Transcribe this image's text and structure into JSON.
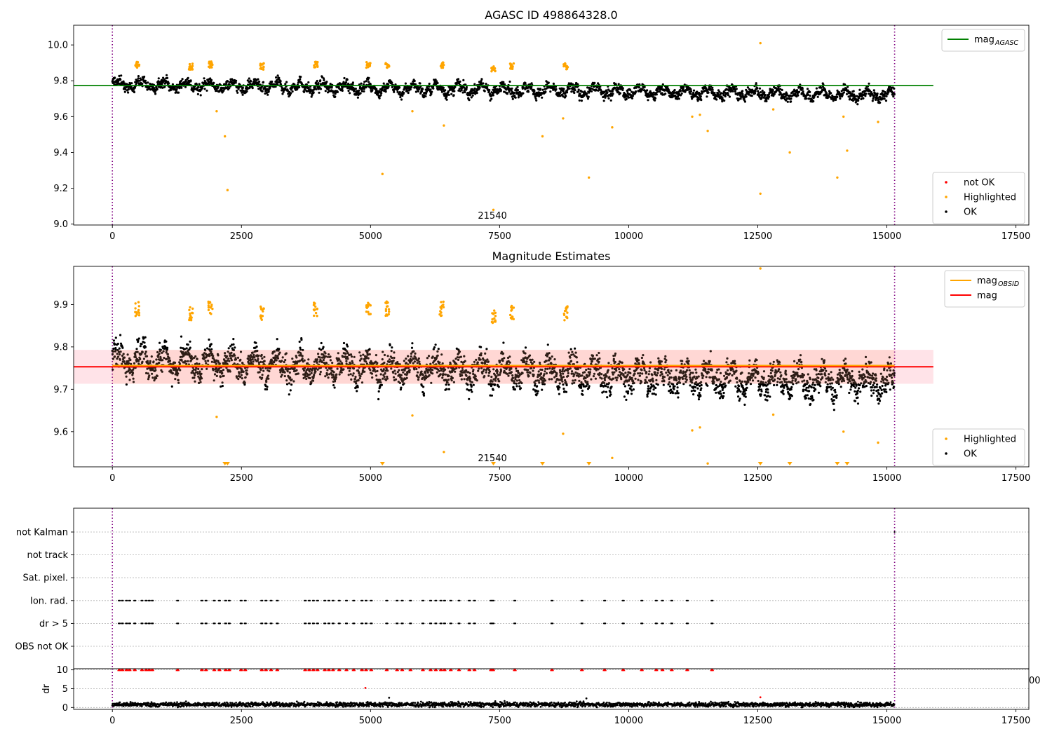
{
  "colors": {
    "ok": "#000000",
    "highlighted": "#ffa500",
    "not_ok": "#ff0000",
    "agasc_line": "#008000",
    "mag_line": "#ff0000",
    "mag_obsid_line": "#ffa500",
    "mag_band": "#ffc0cb",
    "obs_boundary": "#800080",
    "grid": "#b0b0b0"
  },
  "chart_data": [
    {
      "id": "agasc",
      "type": "scatter",
      "title": "AGASC ID 498864328.0",
      "xlim": [
        -750,
        17750
      ],
      "ylim": [
        8.995,
        10.11
      ],
      "x_ticks": [
        0,
        2500,
        5000,
        7500,
        10000,
        12500,
        15000,
        17500
      ],
      "x_tick_labels": [
        "0",
        "2500",
        "5000",
        "7500",
        "10000",
        "12500",
        "15000",
        "17500"
      ],
      "y_ticks": [
        9.0,
        9.2,
        9.4,
        9.6,
        9.8,
        10.0
      ],
      "y_tick_labels": [
        "9.0",
        "9.2",
        "9.4",
        "9.6",
        "9.8",
        "10.0"
      ],
      "hlines": [
        {
          "name": "mag_AGASC",
          "y": 9.773,
          "x_range": [
            -750,
            15900
          ],
          "color": "#008000"
        }
      ],
      "obs_boundaries": [
        0,
        15150
      ],
      "annotations": [
        {
          "text": "21540",
          "x": 7360,
          "y": 9.03
        }
      ],
      "ok_trend": {
        "x": [
          0,
          15150
        ],
        "y": [
          9.78,
          9.72
        ],
        "scatter": 0.04
      },
      "highlighted_clusters": [
        {
          "x": 480,
          "y": 9.89
        },
        {
          "x": 1520,
          "y": 9.88
        },
        {
          "x": 1900,
          "y": 9.89
        },
        {
          "x": 2900,
          "y": 9.88
        },
        {
          "x": 3940,
          "y": 9.89
        },
        {
          "x": 4960,
          "y": 9.89
        },
        {
          "x": 5320,
          "y": 9.89
        },
        {
          "x": 6380,
          "y": 9.89
        },
        {
          "x": 7380,
          "y": 9.87
        },
        {
          "x": 7740,
          "y": 9.88
        },
        {
          "x": 8780,
          "y": 9.88
        }
      ],
      "highlighted_outliers": [
        {
          "x": 2020,
          "y": 9.63
        },
        {
          "x": 2180,
          "y": 9.49
        },
        {
          "x": 2230,
          "y": 9.19
        },
        {
          "x": 5230,
          "y": 9.28
        },
        {
          "x": 5810,
          "y": 9.63
        },
        {
          "x": 6420,
          "y": 9.55
        },
        {
          "x": 8330,
          "y": 9.49
        },
        {
          "x": 8730,
          "y": 9.59
        },
        {
          "x": 9230,
          "y": 9.26
        },
        {
          "x": 9680,
          "y": 9.54
        },
        {
          "x": 11230,
          "y": 9.6
        },
        {
          "x": 11380,
          "y": 9.61
        },
        {
          "x": 11530,
          "y": 9.52
        },
        {
          "x": 12550,
          "y": 10.01
        },
        {
          "x": 12550,
          "y": 9.17
        },
        {
          "x": 12800,
          "y": 9.64
        },
        {
          "x": 13120,
          "y": 9.4
        },
        {
          "x": 14040,
          "y": 9.26
        },
        {
          "x": 14160,
          "y": 9.6
        },
        {
          "x": 14230,
          "y": 9.41
        },
        {
          "x": 14830,
          "y": 9.57
        },
        {
          "x": 7380,
          "y": 9.08
        }
      ],
      "legends": [
        {
          "position": "upper-right",
          "entries": [
            {
              "label": "mag",
              "subscript": "AGASC",
              "kind": "line",
              "color": "#008000"
            }
          ]
        },
        {
          "position": "lower-right",
          "entries": [
            {
              "label": "not OK",
              "kind": "point",
              "color": "#ff0000"
            },
            {
              "label": "Highlighted",
              "kind": "point",
              "color": "#ffa500"
            },
            {
              "label": "OK",
              "kind": "point",
              "color": "#000000"
            }
          ]
        }
      ]
    },
    {
      "id": "estimates",
      "type": "scatter",
      "title": "Magnitude Estimates",
      "xlim": [
        -750,
        17750
      ],
      "ylim": [
        9.517,
        9.99
      ],
      "x_ticks": [
        0,
        2500,
        5000,
        7500,
        10000,
        12500,
        15000,
        17500
      ],
      "x_tick_labels": [
        "0",
        "2500",
        "5000",
        "7500",
        "10000",
        "12500",
        "15000",
        "17500"
      ],
      "y_ticks": [
        9.6,
        9.7,
        9.8,
        9.9
      ],
      "y_tick_labels": [
        "9.6",
        "9.7",
        "9.8",
        "9.9"
      ],
      "hlines": [
        {
          "name": "mag",
          "y": 9.753,
          "x_range": [
            -750,
            15900
          ],
          "color": "#ff0000"
        },
        {
          "name": "mag_OBSID",
          "y": 9.756,
          "x_range": [
            0,
            15150
          ],
          "color": "#ffa500"
        }
      ],
      "band": {
        "y_low": 9.713,
        "y_high": 9.793,
        "x_range": [
          -750,
          15900
        ],
        "color": "#ffc0cb"
      },
      "obs_boundaries": [
        0,
        15150
      ],
      "annotations": [
        {
          "text": "21540",
          "x": 7360,
          "y": 9.53
        }
      ],
      "ok_trend": {
        "x": [
          0,
          15150
        ],
        "y": [
          9.77,
          9.715
        ],
        "scatter": 0.045
      },
      "highlighted_clusters": [
        {
          "x": 480,
          "y": 9.89
        },
        {
          "x": 1520,
          "y": 9.88
        },
        {
          "x": 1900,
          "y": 9.89
        },
        {
          "x": 2900,
          "y": 9.88
        },
        {
          "x": 3940,
          "y": 9.89
        },
        {
          "x": 4960,
          "y": 9.89
        },
        {
          "x": 5320,
          "y": 9.89
        },
        {
          "x": 6380,
          "y": 9.89
        },
        {
          "x": 7380,
          "y": 9.87
        },
        {
          "x": 7740,
          "y": 9.88
        },
        {
          "x": 8780,
          "y": 9.88
        }
      ],
      "highlighted_outliers": [
        {
          "x": 2020,
          "y": 9.635
        },
        {
          "x": 5810,
          "y": 9.638
        },
        {
          "x": 6420,
          "y": 9.552
        },
        {
          "x": 8730,
          "y": 9.595
        },
        {
          "x": 9680,
          "y": 9.538
        },
        {
          "x": 11230,
          "y": 9.603
        },
        {
          "x": 11380,
          "y": 9.61
        },
        {
          "x": 11530,
          "y": 9.525
        },
        {
          "x": 12800,
          "y": 9.64
        },
        {
          "x": 14160,
          "y": 9.6
        },
        {
          "x": 14830,
          "y": 9.574
        },
        {
          "x": 12550,
          "y": 9.985
        }
      ],
      "below_range_markers": [
        2180,
        2230,
        5230,
        7380,
        8330,
        9230,
        12550,
        13120,
        14040,
        14230
      ],
      "legends": [
        {
          "position": "upper-right",
          "entries": [
            {
              "label": "mag",
              "subscript": "OBSID",
              "kind": "line",
              "color": "#ffa500"
            },
            {
              "label": "mag",
              "kind": "line",
              "color": "#ff0000"
            }
          ]
        },
        {
          "position": "lower-right",
          "entries": [
            {
              "label": "Highlighted",
              "kind": "point",
              "color": "#ffa500"
            },
            {
              "label": "OK",
              "kind": "point",
              "color": "#000000"
            }
          ]
        }
      ]
    },
    {
      "id": "flags",
      "type": "scatter",
      "xlim": [
        -750,
        17750
      ],
      "categories": [
        "not Kalman",
        "not track",
        "Sat. pixel.",
        "Ion. rad.",
        "dr > 5",
        "OBS not OK"
      ],
      "flag_times": [
        120,
        180,
        260,
        320,
        420,
        560,
        640,
        700,
        760,
        1250,
        1720,
        1800,
        1960,
        2060,
        2180,
        2250,
        2480,
        2560,
        2880,
        2960,
        3060,
        3180,
        3720,
        3800,
        3880,
        3960,
        4100,
        4180,
        4260,
        4380,
        4520,
        4660,
        4820,
        4900,
        5000,
        5300,
        5500,
        5600,
        5760,
        6000,
        6150,
        6250,
        6350,
        6420,
        6540,
        6700,
        6900,
        7000,
        7320,
        7360,
        7780,
        8500,
        9080,
        9520,
        9880,
        10240,
        10520,
        10640,
        10820,
        11120,
        11600
      ],
      "flag_rows": [
        "Ion. rad.",
        "dr > 5"
      ],
      "not_kalman_times": [
        15150
      ],
      "obs_boundaries": [
        0,
        15150
      ],
      "truncated_label": "00"
    },
    {
      "id": "dr",
      "type": "scatter",
      "ylabel": "dr",
      "xlim": [
        -750,
        17750
      ],
      "ylim": [
        -0.5,
        10.3
      ],
      "x_ticks": [
        0,
        2500,
        5000,
        7500,
        10000,
        12500,
        15000,
        17500
      ],
      "x_tick_labels": [
        "0",
        "2500",
        "5000",
        "7500",
        "10000",
        "12500",
        "15000",
        "17500"
      ],
      "y_ticks": [
        0,
        5,
        10
      ],
      "y_tick_labels": [
        "0",
        "5",
        "10"
      ],
      "ok_level": {
        "y": 0.8,
        "scatter": 0.5,
        "x_range": [
          0,
          15150
        ]
      },
      "not_ok_at_y": 10,
      "outliers": [
        {
          "x": 4900,
          "y": 5.2,
          "color": "#ff0000"
        },
        {
          "x": 12550,
          "y": 2.7,
          "color": "#ff0000"
        },
        {
          "x": 9180,
          "y": 2.4,
          "color": "#000000"
        },
        {
          "x": 5360,
          "y": 2.6,
          "color": "#000000"
        }
      ],
      "obs_boundaries": [
        0,
        15150
      ]
    }
  ]
}
